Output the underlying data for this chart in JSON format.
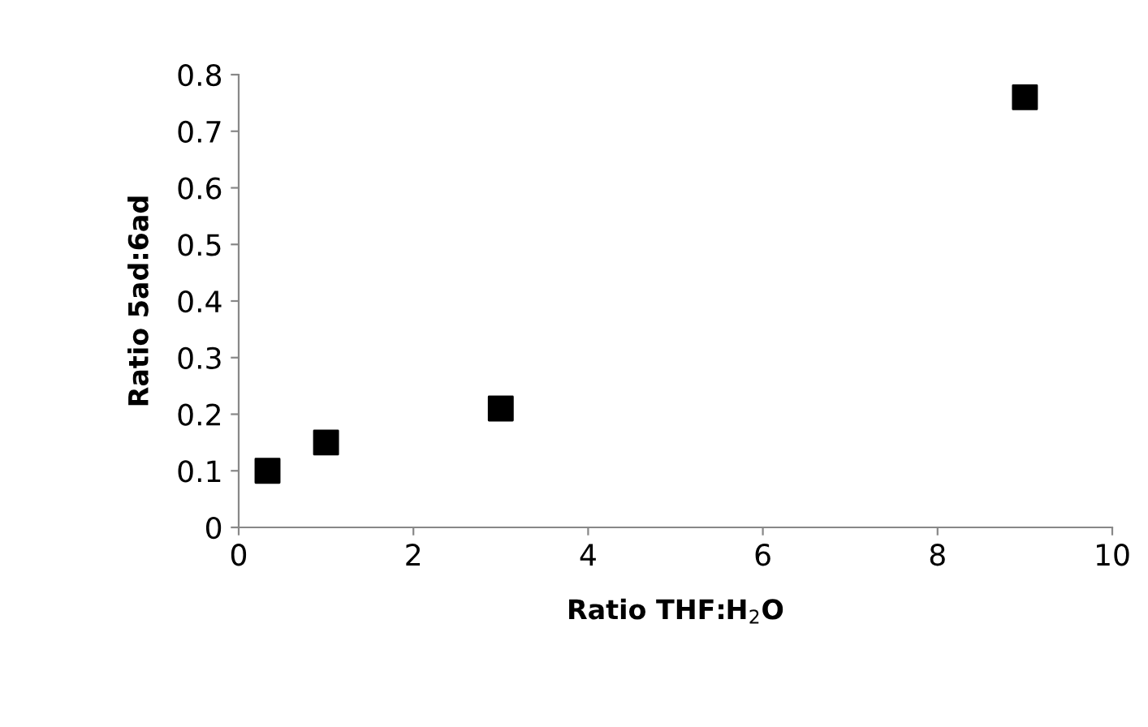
{
  "chart_data": {
    "type": "scatter",
    "xlabel": "Ratio THF:H$_{2}$O",
    "ylabel": "Ratio 5ad:6ad",
    "x": [
      0.33,
      1,
      3,
      9
    ],
    "series": [
      {
        "color": "#000000",
        "values": [
          0.1,
          0.15,
          0.21,
          0.76
        ]
      }
    ],
    "xlim": [
      0,
      10
    ],
    "xticks": [
      0,
      2,
      4,
      6,
      8,
      10
    ],
    "ylim": [
      0,
      0.8
    ],
    "yticks": [
      0,
      0.1,
      0.2,
      0.3,
      0.4,
      0.5,
      0.6,
      0.7,
      0.8
    ],
    "marker": "square",
    "grid": false,
    "legend": false
  }
}
